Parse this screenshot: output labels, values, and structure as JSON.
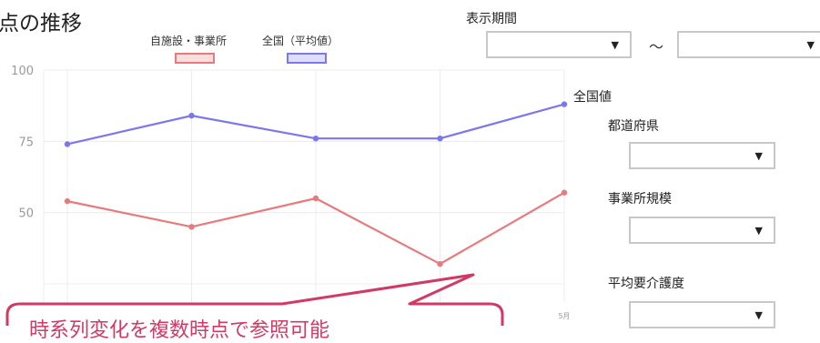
{
  "page_title": "点の推移",
  "legend": [
    {
      "label": "自施設・事業所",
      "color": "#e87a7d"
    },
    {
      "label": "全国（平均値）",
      "color": "#7b77ec"
    }
  ],
  "chart_data": {
    "type": "line",
    "categories": [
      "",
      "",
      "",
      "",
      "5月"
    ],
    "series": [
      {
        "name": "自施設・事業所",
        "values": [
          54,
          45,
          55,
          32,
          57
        ],
        "color": "#e87a7d"
      },
      {
        "name": "全国（平均値）",
        "values": [
          74,
          84,
          76,
          76,
          88
        ],
        "color": "#7b77ec"
      }
    ],
    "yticks": [
      100,
      75,
      50
    ],
    "ylim": [
      25,
      100
    ]
  },
  "series_end_label": "全国値",
  "filters": {
    "period_label": "表示期間",
    "period_separator": "～",
    "prefecture_label": "都道府県",
    "scale_label": "事業所規模",
    "care_level_label": "平均要介護度",
    "caret": "▼"
  },
  "callout": {
    "text": "時系列変化を複数時点で参照可能",
    "color": "#d03a64"
  }
}
